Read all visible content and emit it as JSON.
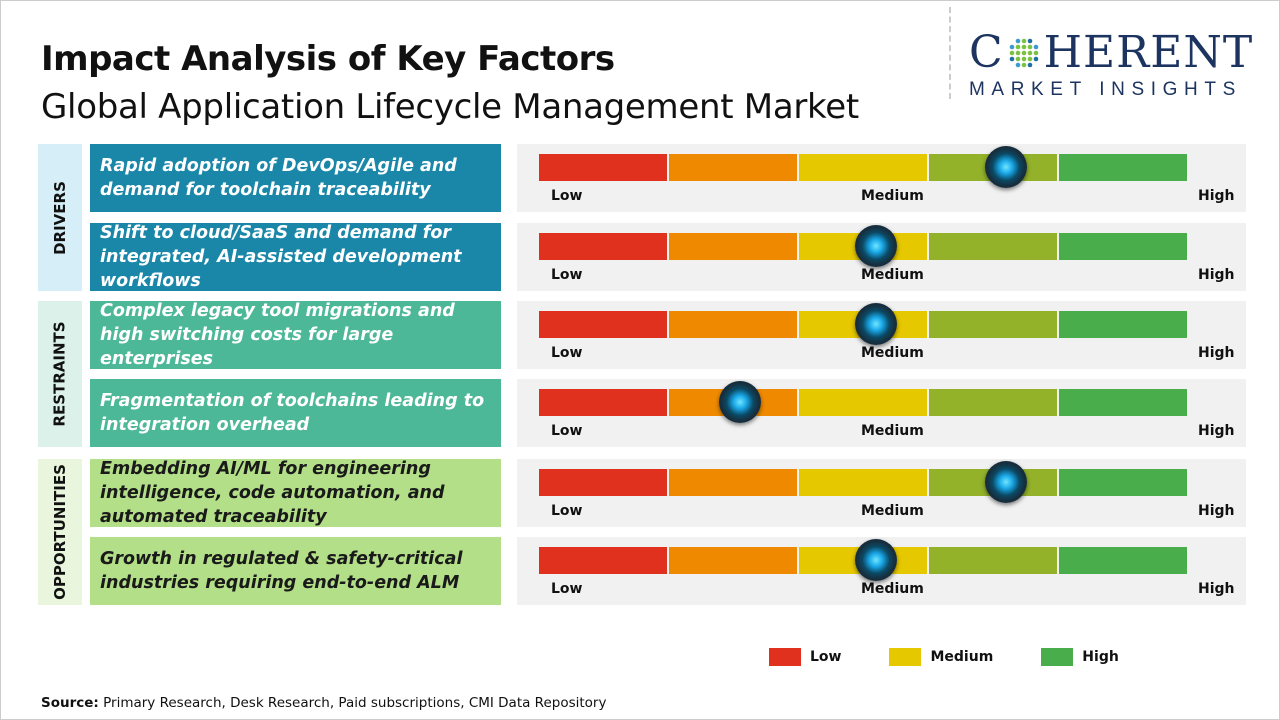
{
  "title": "Impact Analysis of Key Factors",
  "subtitle": "Global Application Lifecycle Management Market",
  "logo": {
    "line1": "COHERENT",
    "line2": "MARKET INSIGHTS"
  },
  "colors": {
    "drivers": "#1a87a9",
    "restraints": "#4db898",
    "opportunities": "#b3df88",
    "drivers_bg": "#d5eef7",
    "restraints_bg": "#dcf1ea",
    "opportunities_bg": "#e9f5dc",
    "segments": [
      "#e0301e",
      "#ef8a00",
      "#e6c800",
      "#93b22a",
      "#4aad4c"
    ]
  },
  "chart_data": {
    "type": "gauge",
    "scale_labels": [
      "Low",
      "Medium",
      "High"
    ],
    "groups": [
      {
        "category": "DRIVERS",
        "key": "drivers",
        "factors": [
          {
            "text": "Rapid adoption of DevOps/Agile and demand for toolchain traceability",
            "level": 0.72
          },
          {
            "text": "Shift to cloud/SaaS and demand for integrated, AI-assisted development workflows",
            "level": 0.52
          }
        ]
      },
      {
        "category": "RESTRAINTS",
        "key": "restraints",
        "factors": [
          {
            "text": "Complex legacy tool migrations and high switching costs for large enterprises",
            "level": 0.52
          },
          {
            "text": "Fragmentation of toolchains leading to integration overhead",
            "level": 0.31
          }
        ]
      },
      {
        "category": "OPPORTUNITIES",
        "key": "opportunities",
        "factors": [
          {
            "text": "Embedding AI/ML for engineering intelligence, code automation, and automated traceability",
            "level": 0.72
          },
          {
            "text": "Growth in regulated & safety-critical industries requiring end-to-end ALM",
            "level": 0.52
          }
        ]
      }
    ],
    "legend": [
      {
        "label": "Low",
        "color": "#e0301e"
      },
      {
        "label": "Medium",
        "color": "#e6c800"
      },
      {
        "label": "High",
        "color": "#4aad4c"
      }
    ]
  },
  "source": {
    "label": "Source:",
    "text": " Primary Research, Desk Research, Paid subscriptions, CMI Data Repository"
  }
}
